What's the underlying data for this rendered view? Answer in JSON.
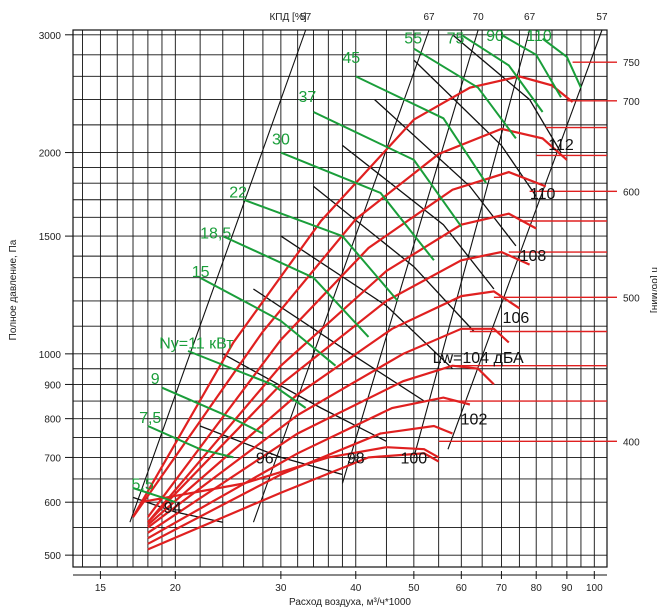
{
  "chart_data": {
    "type": "line",
    "xlabel": "Расход воздуха, м³/ч*1000",
    "ylabel": "Полное давление, Па",
    "y2label": "n [об/мин]",
    "toplabel": "КПД [%]",
    "x_scale": "log",
    "y_scale": "log",
    "xlim": [
      13.5,
      105
    ],
    "ylim": [
      480,
      3050
    ],
    "grid": true,
    "x_ticks": [
      15,
      20,
      30,
      40,
      50,
      60,
      70,
      80,
      90,
      100
    ],
    "y_ticks": [
      500,
      600,
      700,
      800,
      900,
      1000,
      1500,
      2000,
      3000
    ],
    "efficiency_top_labels": [
      "57",
      "67",
      "70",
      "67",
      "57"
    ],
    "rpm_labels": [
      {
        "label": "750",
        "p": 2730
      },
      {
        "label": "700",
        "p": 2390
      },
      {
        "label": "600",
        "p": 1750
      },
      {
        "label": "500",
        "p": 1215
      },
      {
        "label": "400",
        "p": 740
      }
    ],
    "power_labels": [
      "5,5",
      "7,5",
      "9",
      "Ny=11 кВт",
      "15",
      "18,5",
      "22",
      "30",
      "37",
      "45",
      "55",
      "75",
      "90",
      "110"
    ],
    "sound_labels": [
      "94",
      "96",
      "98",
      "100",
      "102",
      "Lw=104 дБА",
      "106",
      "108",
      "110",
      "112"
    ],
    "series": [
      {
        "rpm_p": 2730,
        "points": [
          [
            17,
            570
          ],
          [
            25,
            1040
          ],
          [
            35,
            1580
          ],
          [
            50,
            2240
          ],
          [
            62,
            2500
          ],
          [
            75,
            2600
          ],
          [
            85,
            2520
          ],
          [
            92,
            2380
          ]
        ]
      },
      {
        "rpm_p": 2390,
        "points": [
          [
            17,
            570
          ],
          [
            28,
            1080
          ],
          [
            40,
            1590
          ],
          [
            55,
            1990
          ],
          [
            70,
            2170
          ],
          [
            82,
            2100
          ],
          [
            90,
            1950
          ]
        ]
      },
      {
        "rpm_p": 2180,
        "points": [
          [
            18,
            570
          ],
          [
            30,
            1050
          ],
          [
            42,
            1440
          ],
          [
            58,
            1760
          ],
          [
            72,
            1870
          ],
          [
            83,
            1780
          ]
        ]
      },
      {
        "rpm_p": 1980,
        "points": [
          [
            18,
            560
          ],
          [
            30,
            960
          ],
          [
            45,
            1330
          ],
          [
            60,
            1560
          ],
          [
            72,
            1620
          ],
          [
            80,
            1540
          ]
        ]
      },
      {
        "rpm_p": 1750,
        "points": [
          [
            18,
            560
          ],
          [
            30,
            900
          ],
          [
            45,
            1200
          ],
          [
            60,
            1380
          ],
          [
            70,
            1420
          ],
          [
            78,
            1360
          ]
        ]
      },
      {
        "rpm_p": 1580,
        "points": [
          [
            18,
            555
          ],
          [
            32,
            870
          ],
          [
            46,
            1090
          ],
          [
            60,
            1220
          ],
          [
            68,
            1240
          ],
          [
            75,
            1170
          ]
        ]
      },
      {
        "rpm_p": 1420,
        "points": [
          [
            18,
            550
          ],
          [
            32,
            810
          ],
          [
            48,
            1000
          ],
          [
            60,
            1090
          ],
          [
            68,
            1090
          ],
          [
            72,
            1040
          ]
        ]
      },
      {
        "rpm_p": 1215,
        "points": [
          [
            18,
            540
          ],
          [
            32,
            760
          ],
          [
            48,
            910
          ],
          [
            58,
            960
          ],
          [
            64,
            950
          ],
          [
            68,
            900
          ]
        ]
      },
      {
        "rpm_p": 1080,
        "points": [
          [
            18,
            530
          ],
          [
            32,
            710
          ],
          [
            46,
            830
          ],
          [
            56,
            860
          ],
          [
            62,
            840
          ]
        ]
      },
      {
        "rpm_p": 960,
        "points": [
          [
            18,
            520
          ],
          [
            30,
            660
          ],
          [
            44,
            760
          ],
          [
            54,
            780
          ],
          [
            58,
            760
          ]
        ]
      },
      {
        "rpm_p": 850,
        "points": [
          [
            18,
            510
          ],
          [
            30,
            620
          ],
          [
            42,
            700
          ],
          [
            52,
            710
          ],
          [
            55,
            690
          ]
        ]
      },
      {
        "rpm_p": 740,
        "points": [
          [
            17.5,
            600
          ],
          [
            26,
            640
          ],
          [
            36,
            700
          ],
          [
            45,
            725
          ],
          [
            52,
            720
          ],
          [
            55,
            700
          ]
        ]
      }
    ]
  }
}
